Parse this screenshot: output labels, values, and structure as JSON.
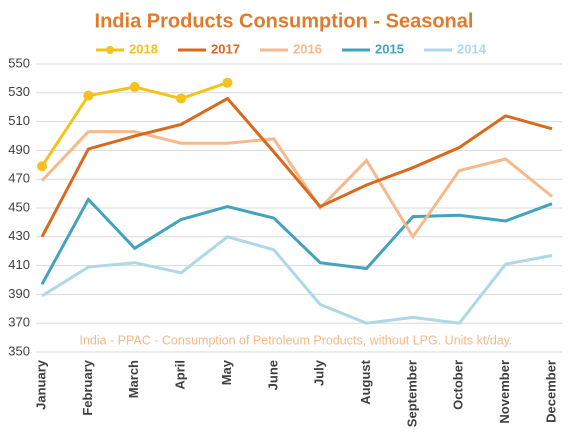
{
  "chart_data": {
    "type": "line",
    "title": "India Products Consumption - Seasonal",
    "annotation": "India - PPAC - Consumption of Petroleum Products, without LPG. Units kt/day.",
    "categories": [
      "January",
      "February",
      "March",
      "April",
      "May",
      "June",
      "July",
      "August",
      "September",
      "October",
      "November",
      "December"
    ],
    "series": [
      {
        "name": "2018",
        "color": "#f5c21b",
        "marker": true,
        "values": [
          479,
          528,
          534,
          526,
          537,
          null,
          null,
          null,
          null,
          null,
          null,
          null
        ]
      },
      {
        "name": "2017",
        "color": "#d9691c",
        "values": [
          430,
          491,
          500,
          508,
          526,
          489,
          451,
          466,
          478,
          492,
          514,
          505
        ]
      },
      {
        "name": "2016",
        "color": "#f5b98b",
        "values": [
          469,
          503,
          503,
          495,
          495,
          498,
          450,
          483,
          430,
          476,
          484,
          458
        ]
      },
      {
        "name": "2015",
        "color": "#43a2bd",
        "values": [
          397,
          456,
          422,
          442,
          451,
          443,
          412,
          408,
          444,
          445,
          441,
          453
        ]
      },
      {
        "name": "2014",
        "color": "#add8e6",
        "values": [
          389,
          409,
          412,
          405,
          430,
          421,
          383,
          370,
          374,
          370,
          411,
          417
        ]
      }
    ],
    "ylim": [
      350,
      550
    ],
    "yticks": [
      350,
      370,
      390,
      410,
      430,
      450,
      470,
      490,
      510,
      530,
      550
    ],
    "grid": true
  }
}
